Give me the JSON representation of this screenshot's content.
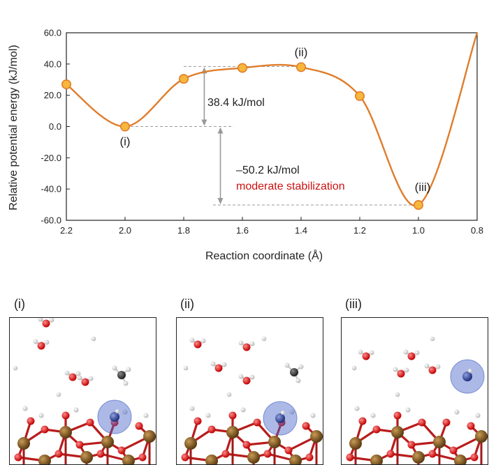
{
  "chart_data": {
    "type": "line",
    "xlabel": "Reaction coordinate (Å)",
    "ylabel": "Relative potential energy (kJ/mol)",
    "xlim": [
      2.2,
      0.8
    ],
    "ylim": [
      -60,
      60
    ],
    "x_ticks": [
      "2.2",
      "2.0",
      "1.8",
      "1.6",
      "1.4",
      "1.2",
      "1.0",
      "0.8"
    ],
    "y_ticks": [
      "60.0",
      "40.0",
      "20.0",
      "0.0",
      "-20.0",
      "-40.0",
      "-60.0"
    ],
    "points": [
      {
        "x": 2.2,
        "y": 27.0
      },
      {
        "x": 2.0,
        "y": 0.0
      },
      {
        "x": 1.8,
        "y": 30.5
      },
      {
        "x": 1.6,
        "y": 37.5
      },
      {
        "x": 1.4,
        "y": 38.0
      },
      {
        "x": 1.2,
        "y": 19.5
      },
      {
        "x": 1.0,
        "y": -50.2
      }
    ],
    "curve_end": {
      "x": 0.8,
      "y": 60.0
    },
    "point_labels": [
      {
        "text": "(i)",
        "x": 2.0,
        "y": 0.0
      },
      {
        "text": "(ii)",
        "x": 1.4,
        "y": 38.0
      },
      {
        "text": "(iii)",
        "x": 1.0,
        "y": -50.2
      }
    ],
    "annotations": {
      "barrier_text": "38.4 kJ/mol",
      "stabilization_value": "–50.2 kJ/mol",
      "stabilization_note": "moderate stabilization"
    },
    "colors": {
      "curve": "#e07c2a",
      "marker_fill": "#f6b73c",
      "marker_edge": "#e07c2a",
      "note": "#cc1111",
      "arrow": "#999999"
    }
  },
  "panels": [
    {
      "label": "(i)"
    },
    {
      "label": "(ii)"
    },
    {
      "label": "(iii)"
    }
  ]
}
